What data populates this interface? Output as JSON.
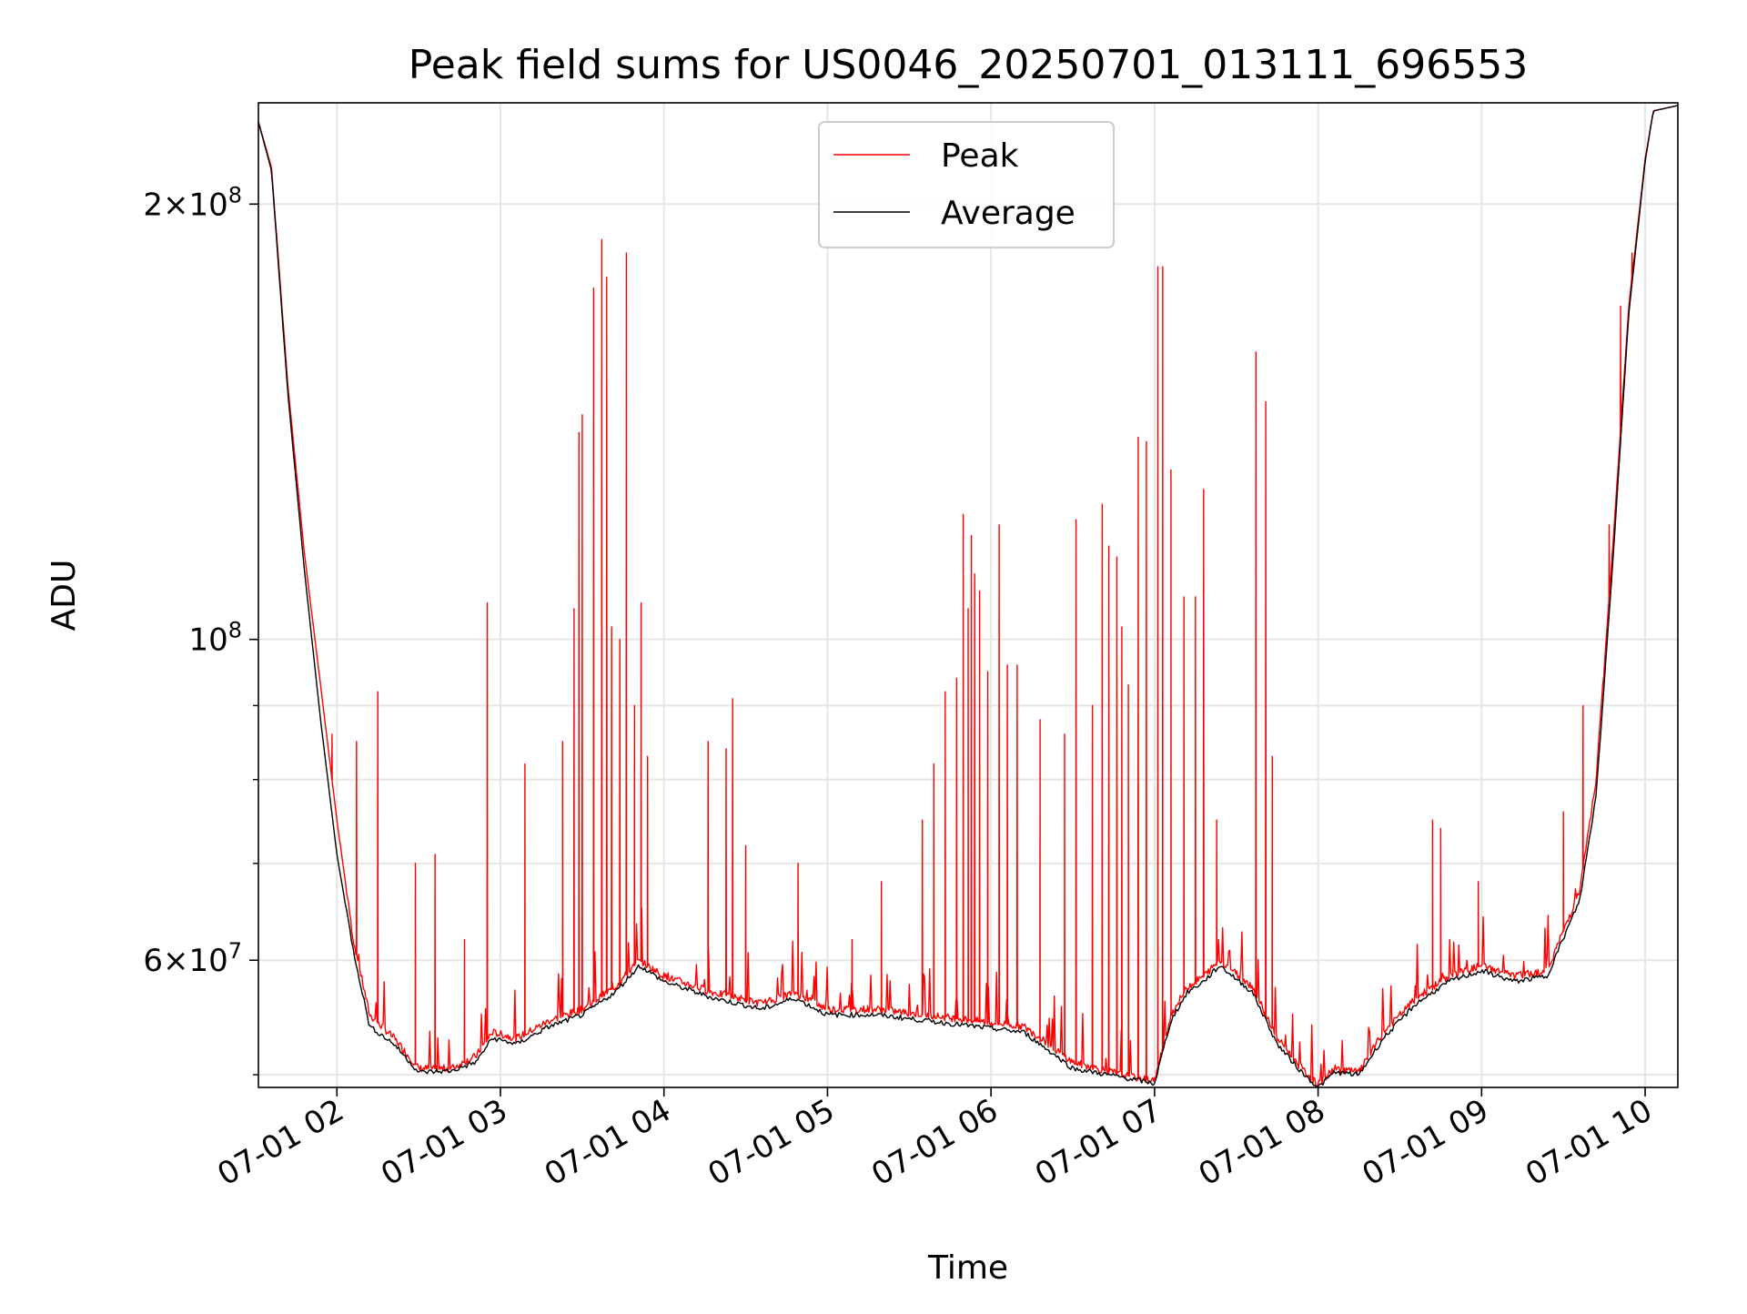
{
  "chart_data": {
    "type": "line",
    "title": "Peak field sums for US0046_20250701_013111_696553",
    "xlabel": "Time",
    "ylabel": "ADU",
    "x_tick_labels": [
      "07-01 02",
      "07-01 03",
      "07-01 04",
      "07-01 05",
      "07-01 06",
      "07-01 07",
      "07-01 08",
      "07-01 09",
      "07-01 10"
    ],
    "y_tick_labels": [
      {
        "value": 200000000,
        "base": "2×10",
        "exp": "8"
      },
      {
        "value": 100000000,
        "base": "10",
        "exp": "8"
      },
      {
        "value": 60000000,
        "base": "6×10",
        "exp": "7"
      }
    ],
    "y_scale": "log",
    "ylim": [
      49000000,
      235000000
    ],
    "xlim_hours": [
      1.52,
      10.2
    ],
    "grid": true,
    "legend_position": "top-center",
    "series": [
      {
        "name": "Peak",
        "color": "#ff0000",
        "baseline": [
          [
            1.52,
            228000000
          ],
          [
            1.6,
            212000000
          ],
          [
            1.7,
            150000000
          ],
          [
            1.8,
            115000000
          ],
          [
            1.9,
            93000000
          ],
          [
            2.0,
            75000000
          ],
          [
            2.1,
            62000000
          ],
          [
            2.2,
            55000000
          ],
          [
            2.35,
            53000000
          ],
          [
            2.5,
            50500000
          ],
          [
            2.7,
            50500000
          ],
          [
            2.85,
            51500000
          ],
          [
            2.95,
            53500000
          ],
          [
            3.1,
            53000000
          ],
          [
            3.3,
            54500000
          ],
          [
            3.5,
            55500000
          ],
          [
            3.7,
            57500000
          ],
          [
            3.85,
            60000000
          ],
          [
            4.0,
            58500000
          ],
          [
            4.3,
            57000000
          ],
          [
            4.6,
            56000000
          ],
          [
            4.8,
            57000000
          ],
          [
            5.0,
            55500000
          ],
          [
            5.3,
            55500000
          ],
          [
            5.6,
            55000000
          ],
          [
            5.9,
            54500000
          ],
          [
            6.2,
            54000000
          ],
          [
            6.35,
            52500000
          ],
          [
            6.5,
            51000000
          ],
          [
            6.8,
            50000000
          ],
          [
            7.0,
            49500000
          ],
          [
            7.1,
            55000000
          ],
          [
            7.2,
            57500000
          ],
          [
            7.3,
            58500000
          ],
          [
            7.4,
            60000000
          ],
          [
            7.6,
            57500000
          ],
          [
            7.75,
            53000000
          ],
          [
            7.9,
            50500000
          ],
          [
            8.0,
            49200000
          ],
          [
            8.1,
            50500000
          ],
          [
            8.25,
            50200000
          ],
          [
            8.4,
            53500000
          ],
          [
            8.6,
            56500000
          ],
          [
            8.8,
            58500000
          ],
          [
            9.0,
            59500000
          ],
          [
            9.2,
            58500000
          ],
          [
            9.4,
            59000000
          ],
          [
            9.6,
            67000000
          ],
          [
            9.7,
            80000000
          ],
          [
            9.8,
            115000000
          ],
          [
            9.9,
            170000000
          ],
          [
            10.0,
            215000000
          ],
          [
            10.05,
            232000000
          ],
          [
            10.2,
            234000000
          ]
        ],
        "spikes": [
          [
            1.97,
            86000000
          ],
          [
            2.12,
            85000000
          ],
          [
            2.25,
            92000000
          ],
          [
            2.48,
            70000000
          ],
          [
            2.6,
            71000000
          ],
          [
            2.78,
            62000000
          ],
          [
            2.92,
            106000000
          ],
          [
            3.15,
            82000000
          ],
          [
            3.38,
            85000000
          ],
          [
            3.45,
            105000000
          ],
          [
            3.48,
            139000000
          ],
          [
            3.5,
            143000000
          ],
          [
            3.57,
            175000000
          ],
          [
            3.62,
            189000000
          ],
          [
            3.65,
            178000000
          ],
          [
            3.68,
            102000000
          ],
          [
            3.73,
            100000000
          ],
          [
            3.77,
            185000000
          ],
          [
            3.82,
            90000000
          ],
          [
            3.86,
            106000000
          ],
          [
            3.9,
            83000000
          ],
          [
            4.27,
            85000000
          ],
          [
            4.38,
            84000000
          ],
          [
            4.42,
            91000000
          ],
          [
            4.5,
            72000000
          ],
          [
            4.82,
            70000000
          ],
          [
            5.15,
            62000000
          ],
          [
            5.33,
            68000000
          ],
          [
            5.58,
            75000000
          ],
          [
            5.65,
            82000000
          ],
          [
            5.72,
            92000000
          ],
          [
            5.79,
            94000000
          ],
          [
            5.83,
            122000000
          ],
          [
            5.86,
            105000000
          ],
          [
            5.88,
            118000000
          ],
          [
            5.9,
            111000000
          ],
          [
            5.93,
            108000000
          ],
          [
            5.98,
            95000000
          ],
          [
            6.05,
            120000000
          ],
          [
            6.1,
            96000000
          ],
          [
            6.16,
            96000000
          ],
          [
            6.3,
            88000000
          ],
          [
            6.45,
            86000000
          ],
          [
            6.52,
            121000000
          ],
          [
            6.62,
            90000000
          ],
          [
            6.68,
            124000000
          ],
          [
            6.72,
            116000000
          ],
          [
            6.77,
            114000000
          ],
          [
            6.8,
            102000000
          ],
          [
            6.84,
            93000000
          ],
          [
            6.9,
            138000000
          ],
          [
            6.95,
            137000000
          ],
          [
            7.02,
            181000000
          ],
          [
            7.05,
            181000000
          ],
          [
            7.1,
            131000000
          ],
          [
            7.18,
            107000000
          ],
          [
            7.25,
            107000000
          ],
          [
            7.3,
            127000000
          ],
          [
            7.38,
            75000000
          ],
          [
            7.62,
            158000000
          ],
          [
            7.68,
            146000000
          ],
          [
            7.72,
            83000000
          ],
          [
            8.7,
            75000000
          ],
          [
            8.75,
            74000000
          ],
          [
            8.98,
            68000000
          ],
          [
            9.5,
            76000000
          ],
          [
            9.62,
            90000000
          ],
          [
            9.78,
            120000000
          ],
          [
            9.85,
            170000000
          ],
          [
            9.92,
            185000000
          ]
        ]
      },
      {
        "name": "Average",
        "color": "#000000",
        "values": [
          [
            1.52,
            228000000
          ],
          [
            1.6,
            211000000
          ],
          [
            1.7,
            148000000
          ],
          [
            1.8,
            112000000
          ],
          [
            1.9,
            88000000
          ],
          [
            2.0,
            71000000
          ],
          [
            2.1,
            61000000
          ],
          [
            2.2,
            54000000
          ],
          [
            2.35,
            52500000
          ],
          [
            2.5,
            50200000
          ],
          [
            2.7,
            50300000
          ],
          [
            2.85,
            51000000
          ],
          [
            2.95,
            53000000
          ],
          [
            3.1,
            52500000
          ],
          [
            3.3,
            54000000
          ],
          [
            3.5,
            55000000
          ],
          [
            3.7,
            57000000
          ],
          [
            3.85,
            59500000
          ],
          [
            4.0,
            58000000
          ],
          [
            4.3,
            56500000
          ],
          [
            4.6,
            55500000
          ],
          [
            4.8,
            56500000
          ],
          [
            5.0,
            55000000
          ],
          [
            5.3,
            55000000
          ],
          [
            5.6,
            54500000
          ],
          [
            5.9,
            54000000
          ],
          [
            6.2,
            53500000
          ],
          [
            6.35,
            52000000
          ],
          [
            6.5,
            50500000
          ],
          [
            6.8,
            49800000
          ],
          [
            7.0,
            49300000
          ],
          [
            7.1,
            54500000
          ],
          [
            7.2,
            57000000
          ],
          [
            7.3,
            58000000
          ],
          [
            7.4,
            59500000
          ],
          [
            7.6,
            57000000
          ],
          [
            7.75,
            52500000
          ],
          [
            7.9,
            50200000
          ],
          [
            8.0,
            49000000
          ],
          [
            8.1,
            50200000
          ],
          [
            8.25,
            50000000
          ],
          [
            8.4,
            53000000
          ],
          [
            8.6,
            56000000
          ],
          [
            8.8,
            58000000
          ],
          [
            9.0,
            59000000
          ],
          [
            9.2,
            58000000
          ],
          [
            9.4,
            58500000
          ],
          [
            9.6,
            66000000
          ],
          [
            9.7,
            78000000
          ],
          [
            9.8,
            112000000
          ],
          [
            9.9,
            168000000
          ],
          [
            10.0,
            214000000
          ],
          [
            10.05,
            232000000
          ],
          [
            10.2,
            234000000
          ]
        ]
      }
    ]
  }
}
